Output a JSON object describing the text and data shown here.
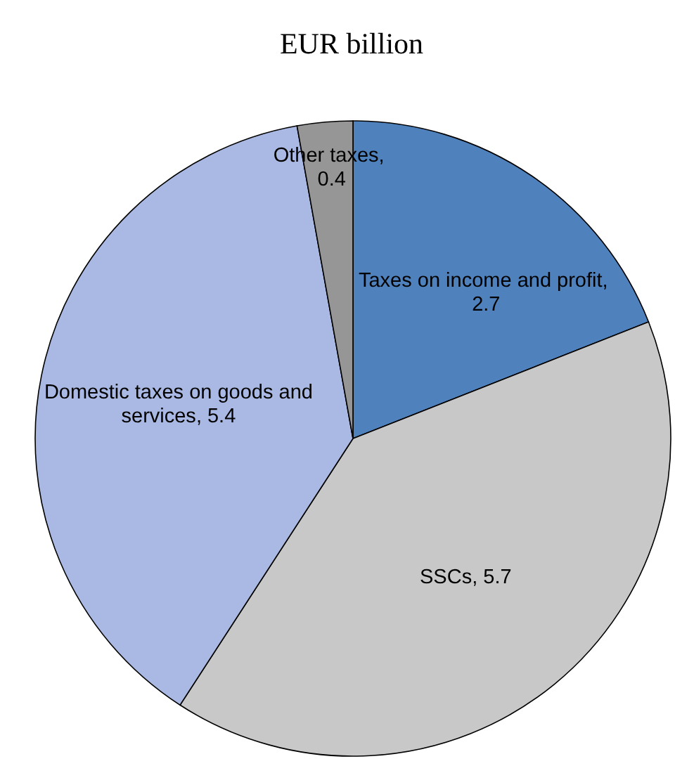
{
  "chart_data": {
    "type": "pie",
    "title": "EUR billion",
    "categories": [
      "Taxes on income and profit",
      "SSCs",
      "Domestic taxes on goods and services",
      "Other taxes"
    ],
    "values": [
      2.7,
      5.7,
      5.4,
      0.4
    ],
    "value_labels": [
      ", 2.7",
      ", 5.7",
      ", 5.4",
      ", 0.4"
    ],
    "colors": [
      "#4f81bd",
      "#c8c8c8",
      "#a9b9e3",
      "#969696"
    ]
  }
}
